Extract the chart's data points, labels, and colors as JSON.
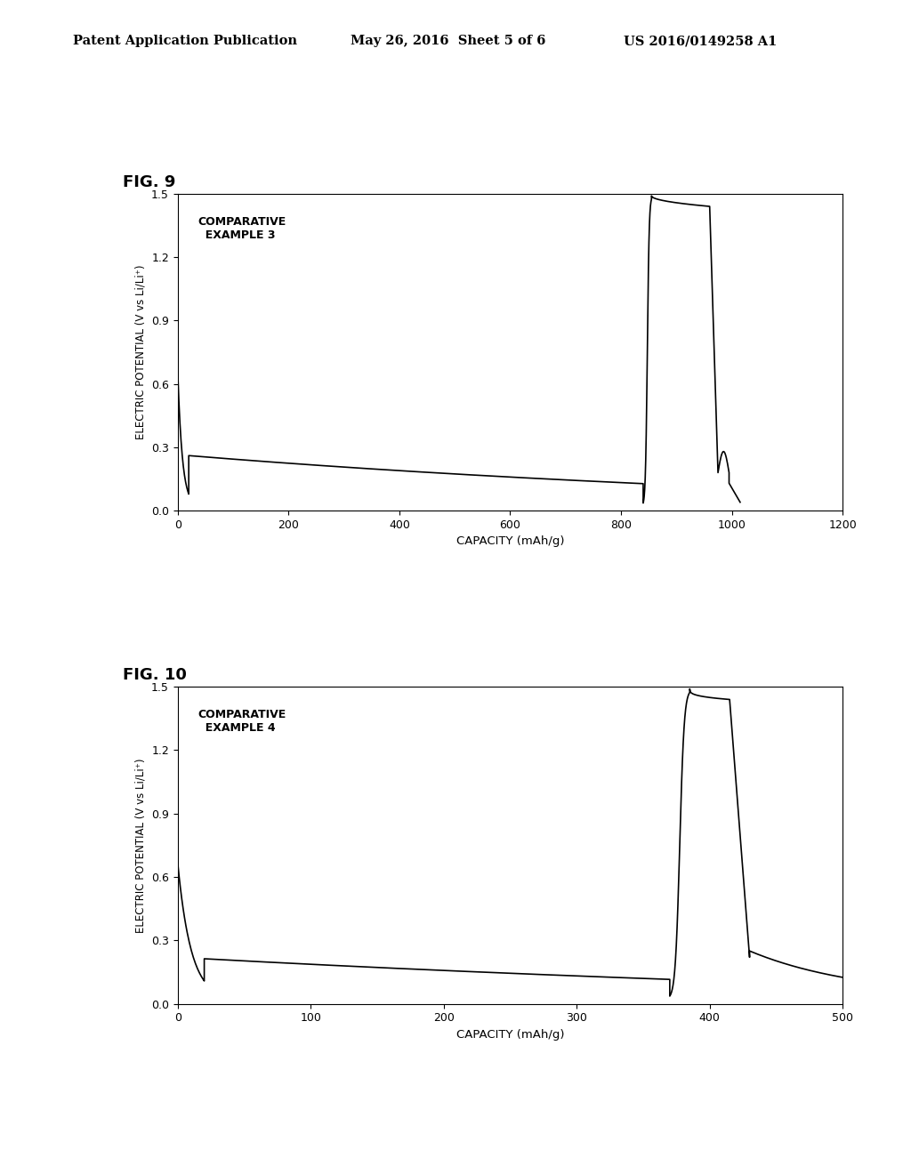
{
  "header_left": "Patent Application Publication",
  "header_mid": "May 26, 2016  Sheet 5 of 6",
  "header_right": "US 2016/0149258 A1",
  "fig9_label": "FIG. 9",
  "fig10_label": "FIG. 10",
  "fig9_annotation": "COMPARATIVE\n  EXAMPLE 3",
  "fig10_annotation": "COMPARATIVE\n  EXAMPLE 4",
  "ylabel": "ELECTRIC POTENTIAL (V vs Li/Li⁺)",
  "xlabel": "CAPACITY (mAh/g)",
  "fig9_xlim": [
    0,
    1200
  ],
  "fig9_ylim": [
    0,
    1.5
  ],
  "fig9_xticks": [
    0,
    200,
    400,
    600,
    800,
    1000,
    1200
  ],
  "fig9_yticks": [
    0,
    0.3,
    0.6,
    0.9,
    1.2,
    1.5
  ],
  "fig10_xlim": [
    0,
    500
  ],
  "fig10_ylim": [
    0,
    1.5
  ],
  "fig10_xticks": [
    0,
    100,
    200,
    300,
    400,
    500
  ],
  "fig10_yticks": [
    0,
    0.3,
    0.6,
    0.9,
    1.2,
    1.5
  ],
  "background_color": "#ffffff",
  "plot_bg_color": "#ffffff",
  "line_color": "#000000",
  "line_width": 1.2
}
